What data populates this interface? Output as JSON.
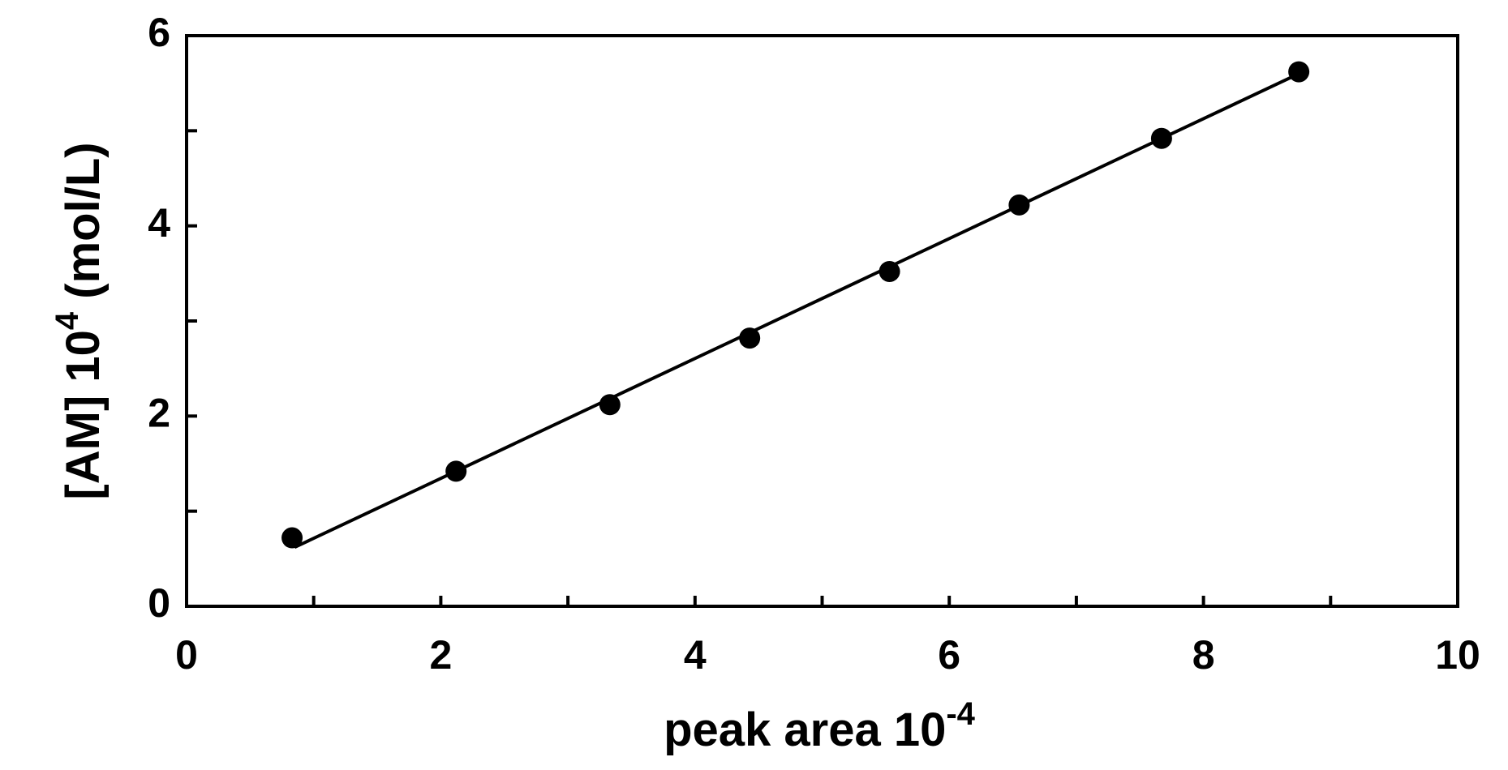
{
  "chart_data": {
    "type": "scatter",
    "x_label": "peak area 10",
    "x_label_sup": "-4",
    "y_label": "[AM] 10",
    "y_label_sup": "4",
    "y_label_unit": " (mol/L)",
    "x": [
      0.83,
      2.12,
      3.33,
      4.43,
      5.53,
      6.55,
      7.67,
      8.75
    ],
    "values": [
      0.72,
      1.42,
      2.12,
      2.82,
      3.52,
      4.22,
      4.92,
      5.62
    ],
    "color": "#000000",
    "fit_line": {
      "x": [
        0.85,
        8.75
      ],
      "values": [
        0.62,
        5.6
      ]
    },
    "xlim": [
      0,
      10
    ],
    "xticks": [
      0,
      2,
      4,
      6,
      8,
      10
    ],
    "xminorticks": [
      1,
      3,
      5,
      7,
      9
    ],
    "ylim": [
      0,
      6
    ],
    "yticks": [
      0,
      2,
      4,
      6
    ],
    "yminorticks": [
      1,
      3,
      5
    ],
    "grid": false
  }
}
